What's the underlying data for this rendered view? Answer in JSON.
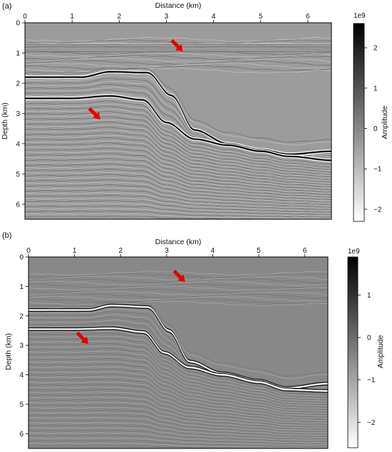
{
  "chart_data": [
    {
      "type": "heatmap",
      "panel_label": "(a)",
      "xlabel": "Distance (km)",
      "ylabel": "Depth (km)",
      "xlim": [
        0,
        6.5
      ],
      "ylim": [
        6.5,
        0
      ],
      "xticks": [
        0,
        1,
        2,
        3,
        4,
        5,
        6
      ],
      "yticks": [
        0,
        1,
        2,
        3,
        4,
        5,
        6
      ],
      "colorbar": {
        "label": "Amplitude",
        "multiplier": "1e9",
        "range": [
          -2.3,
          2.6
        ],
        "ticks": [
          2,
          1,
          0,
          -1,
          -2
        ],
        "tick_labels": [
          "2",
          "1",
          "0",
          "−1",
          "−2"
        ],
        "cmap": "gray_r"
      },
      "arrows": [
        {
          "x": 3.35,
          "y": 0.95,
          "direction": "down-right",
          "color": "#e60000"
        },
        {
          "x": 1.6,
          "y": 3.2,
          "direction": "down-right",
          "color": "#e60000"
        }
      ],
      "horizons": [
        {
          "x": [
            0,
            1.2,
            1.8,
            2.6,
            3.1,
            3.6,
            4.3,
            5.0,
            5.6,
            6.5
          ],
          "y": [
            1.8,
            1.8,
            1.62,
            1.65,
            2.4,
            3.55,
            4.0,
            4.2,
            4.35,
            4.25
          ]
        },
        {
          "x": [
            0,
            1.0,
            1.8,
            2.5,
            3.0,
            3.6,
            4.3,
            5.0,
            5.6,
            6.5
          ],
          "y": [
            2.5,
            2.5,
            2.42,
            2.55,
            3.3,
            3.85,
            4.05,
            4.25,
            4.42,
            4.55
          ]
        }
      ]
    },
    {
      "type": "heatmap",
      "panel_label": "(b)",
      "xlabel": "Distance (km)",
      "ylabel": "Depth (km)",
      "xlim": [
        0,
        6.5
      ],
      "ylim": [
        6.5,
        0
      ],
      "xticks": [
        0,
        1,
        2,
        3,
        4,
        5,
        6
      ],
      "yticks": [
        0,
        1,
        2,
        3,
        4,
        5,
        6
      ],
      "colorbar": {
        "label": "Amplitude",
        "multiplier": "1e9",
        "range": [
          -2.6,
          1.9
        ],
        "ticks": [
          1,
          0,
          -1,
          -2
        ],
        "tick_labels": [
          "1",
          "0",
          "−1",
          "−2"
        ],
        "cmap": "gray_r"
      },
      "arrows": [
        {
          "x": 3.4,
          "y": 0.85,
          "direction": "down-right",
          "color": "#e60000"
        },
        {
          "x": 1.3,
          "y": 2.95,
          "direction": "down-right",
          "color": "#e60000"
        }
      ],
      "horizons": [
        {
          "x": [
            0,
            1.3,
            1.8,
            2.6,
            3.05,
            3.5,
            4.2,
            5.0,
            5.6,
            6.5
          ],
          "y": [
            1.8,
            1.8,
            1.65,
            1.7,
            2.5,
            3.55,
            3.95,
            4.2,
            4.45,
            4.3
          ]
        },
        {
          "x": [
            0,
            1.0,
            1.8,
            2.5,
            2.95,
            3.5,
            4.2,
            5.0,
            5.6,
            6.5
          ],
          "y": [
            2.45,
            2.45,
            2.42,
            2.55,
            3.25,
            3.75,
            4.0,
            4.25,
            4.5,
            4.55
          ]
        }
      ]
    }
  ]
}
